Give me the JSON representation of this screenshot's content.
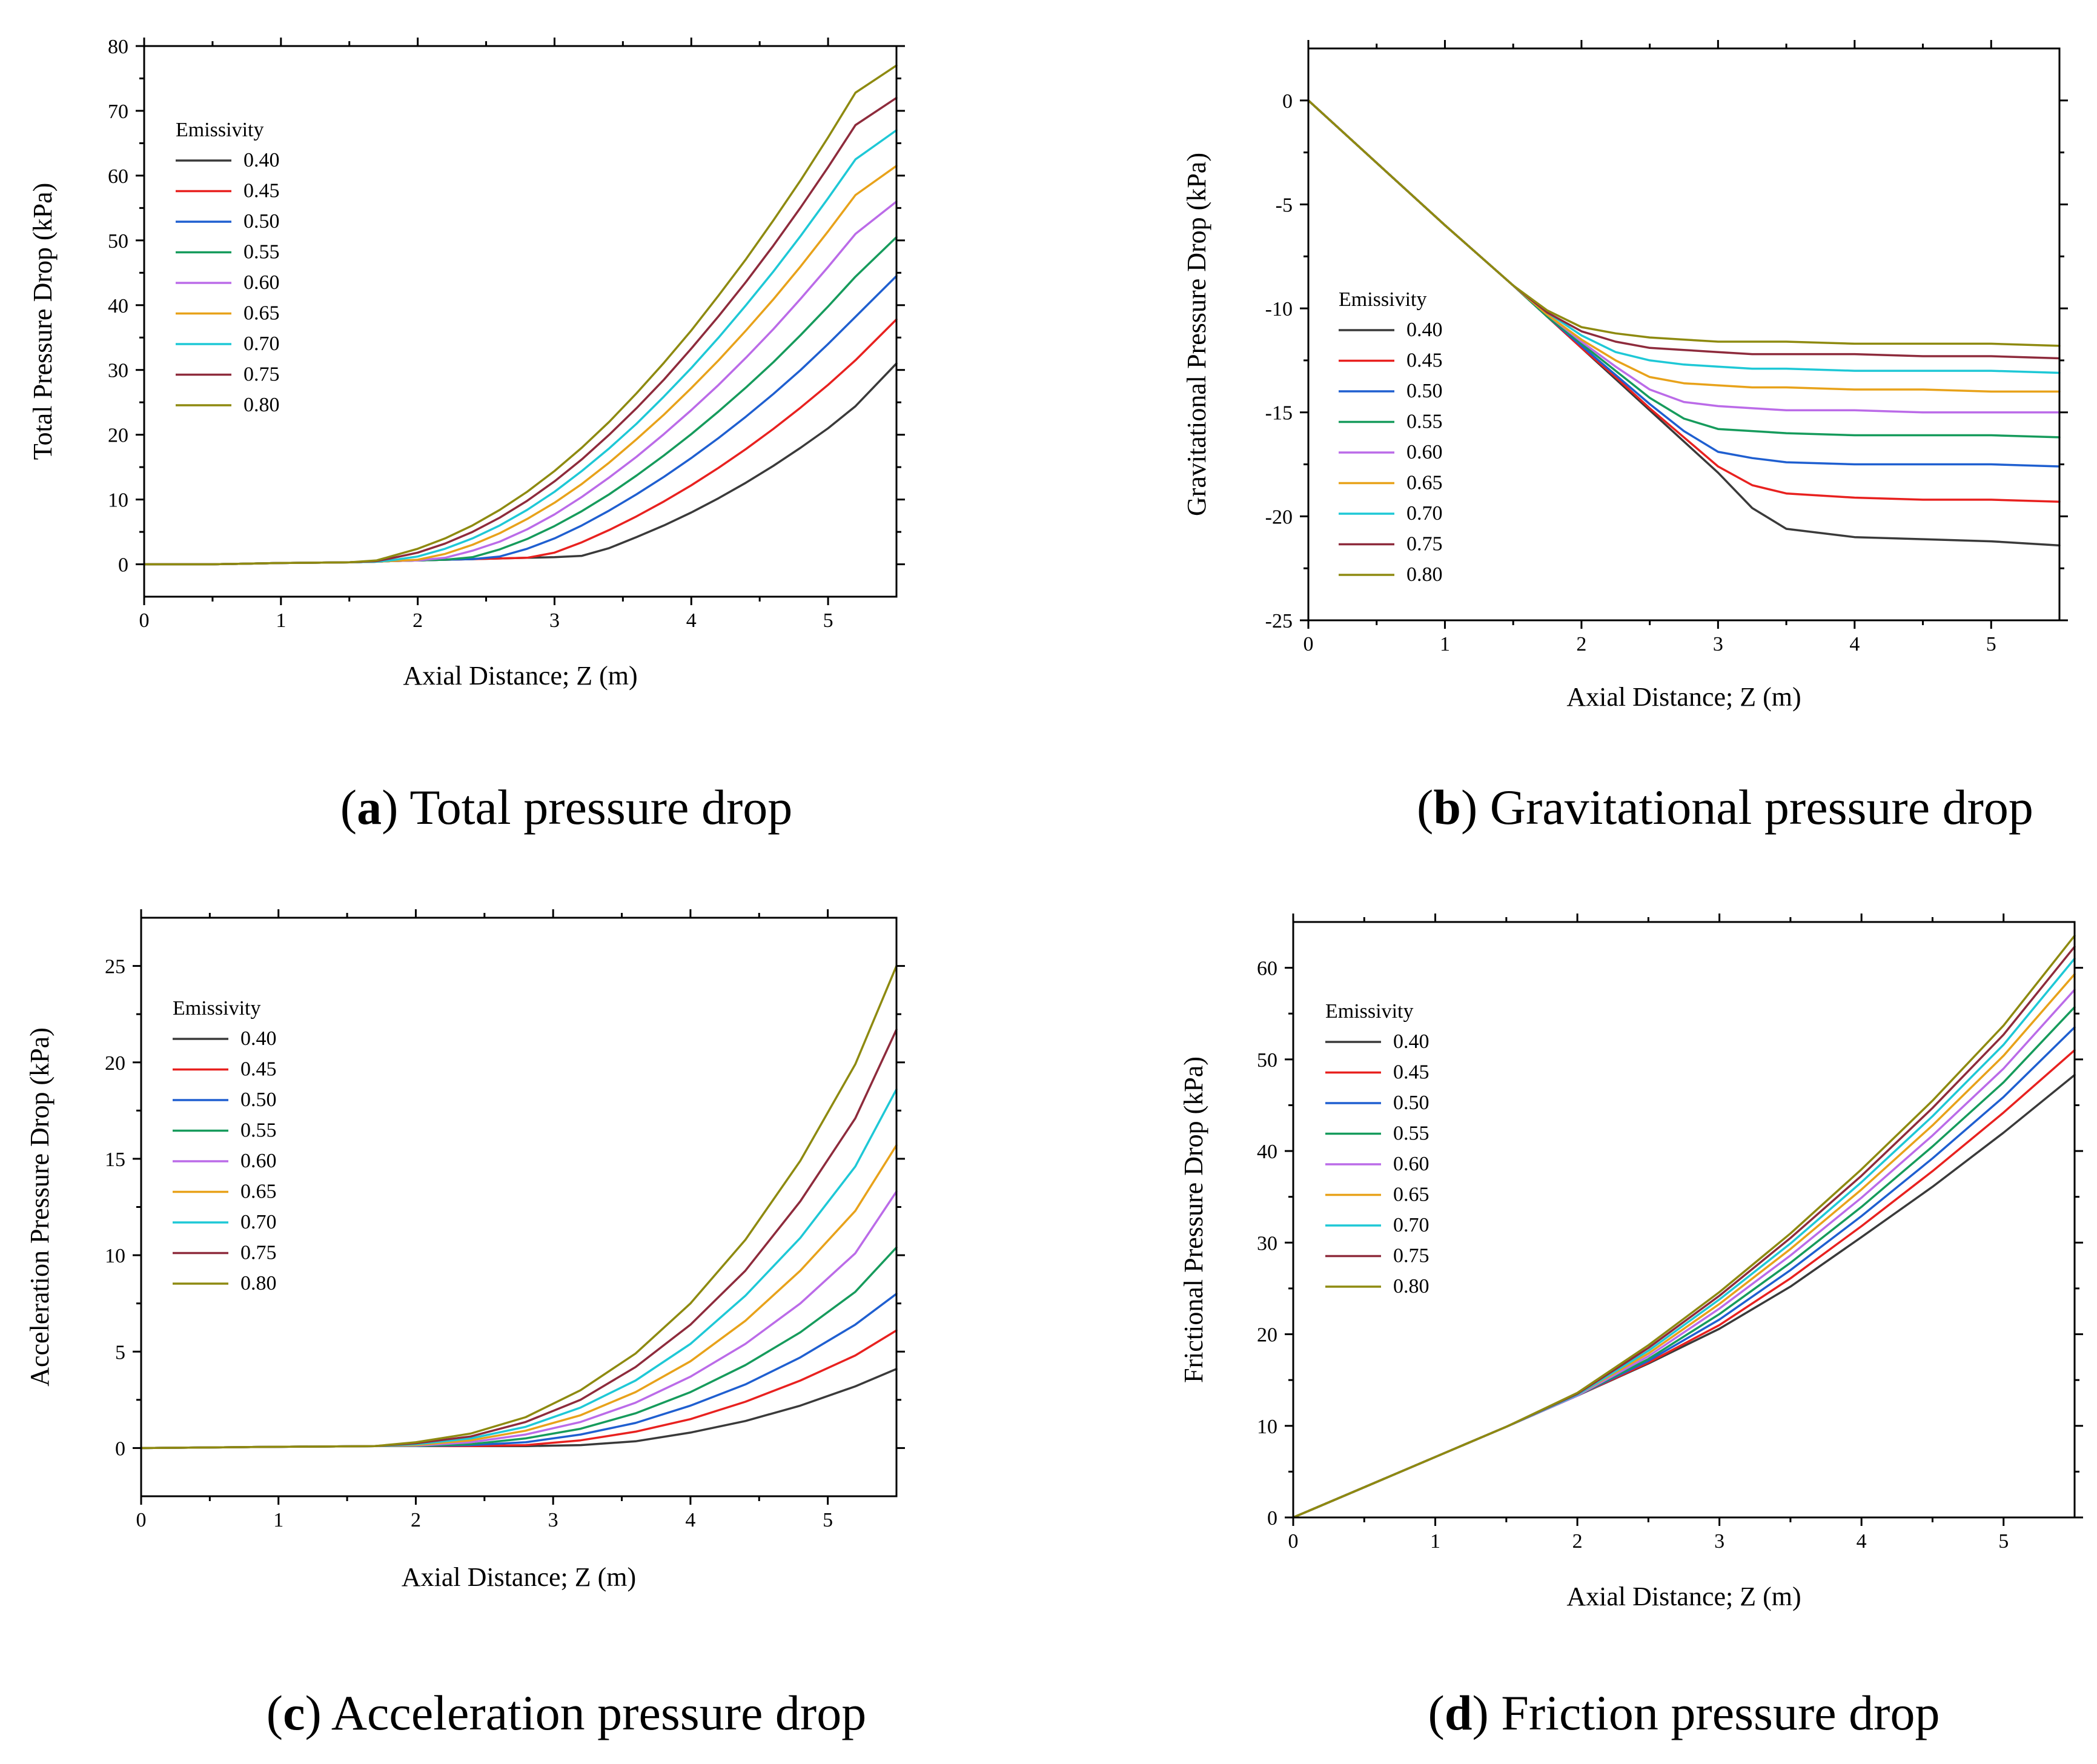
{
  "figure": {
    "series_names": [
      "0.40",
      "0.45",
      "0.50",
      "0.55",
      "0.60",
      "0.65",
      "0.70",
      "0.75",
      "0.80"
    ],
    "series_colors": [
      "#3a3a3a",
      "#e8211f",
      "#1f5fd0",
      "#169b5c",
      "#bb6be8",
      "#e8a21a",
      "#1ec8d6",
      "#8e2b3c",
      "#8e8a10"
    ]
  },
  "chart_data": [
    {
      "id": "a",
      "type": "line",
      "caption_letter": "a",
      "caption_text": "Total pressure drop",
      "xlabel": "Axial Distance; Z (m)",
      "ylabel": "Total Pressure Drop (kPa)",
      "xlim": [
        0,
        5.5
      ],
      "ylim": [
        -5,
        80
      ],
      "xticks": [
        0,
        1,
        2,
        3,
        4,
        5
      ],
      "yticks": [
        0,
        10,
        20,
        30,
        40,
        50,
        60,
        70,
        80
      ],
      "legend_title": "Emissivity",
      "legend_position": "top-left",
      "x": [
        0,
        0.5,
        1,
        1.5,
        1.7,
        1.8,
        2.0,
        2.2,
        2.4,
        2.6,
        2.8,
        3.0,
        3.2,
        3.4,
        3.6,
        3.8,
        4.0,
        4.2,
        4.4,
        4.6,
        4.8,
        5.0,
        5.2,
        5.5
      ],
      "series": [
        {
          "name": "0.40",
          "values": [
            0,
            0,
            0.2,
            0.3,
            0.4,
            0.5,
            0.6,
            0.7,
            0.8,
            0.9,
            1.0,
            1.1,
            1.3,
            2.5,
            4.2,
            6.0,
            8.0,
            10.2,
            12.6,
            15.2,
            18.0,
            21.0,
            24.4,
            31.0
          ]
        },
        {
          "name": "0.45",
          "values": [
            0,
            0,
            0.2,
            0.3,
            0.4,
            0.5,
            0.6,
            0.7,
            0.8,
            0.9,
            1.0,
            1.8,
            3.4,
            5.3,
            7.4,
            9.7,
            12.2,
            14.9,
            17.8,
            20.9,
            24.2,
            27.7,
            31.5,
            37.8
          ]
        },
        {
          "name": "0.50",
          "values": [
            0,
            0,
            0.2,
            0.3,
            0.4,
            0.5,
            0.6,
            0.7,
            0.8,
            1.2,
            2.4,
            4.0,
            6.0,
            8.3,
            10.8,
            13.5,
            16.4,
            19.5,
            22.8,
            26.3,
            30.0,
            34.0,
            38.2,
            44.5
          ]
        },
        {
          "name": "0.55",
          "values": [
            0,
            0,
            0.2,
            0.3,
            0.4,
            0.5,
            0.6,
            0.7,
            1.1,
            2.3,
            3.9,
            5.9,
            8.2,
            10.8,
            13.7,
            16.8,
            20.1,
            23.6,
            27.3,
            31.2,
            35.4,
            39.8,
            44.4,
            50.5
          ]
        },
        {
          "name": "0.60",
          "values": [
            0,
            0,
            0.2,
            0.3,
            0.4,
            0.5,
            0.6,
            1.0,
            2.1,
            3.5,
            5.4,
            7.7,
            10.4,
            13.4,
            16.6,
            20.1,
            23.8,
            27.7,
            31.9,
            36.3,
            41.0,
            45.9,
            51.0,
            56.0
          ]
        },
        {
          "name": "0.65",
          "values": [
            0,
            0,
            0.2,
            0.3,
            0.4,
            0.5,
            0.7,
            1.6,
            3.0,
            4.8,
            7.0,
            9.5,
            12.4,
            15.7,
            19.3,
            23.1,
            27.2,
            31.5,
            36.1,
            40.9,
            46.0,
            51.4,
            57.0,
            61.5
          ]
        },
        {
          "name": "0.70",
          "values": [
            0,
            0,
            0.2,
            0.3,
            0.4,
            0.6,
            1.2,
            2.4,
            4.0,
            6.0,
            8.4,
            11.2,
            14.4,
            17.9,
            21.7,
            25.9,
            30.3,
            35.0,
            40.0,
            45.2,
            50.7,
            56.5,
            62.5,
            67.0
          ]
        },
        {
          "name": "0.75",
          "values": [
            0,
            0,
            0.2,
            0.3,
            0.5,
            0.9,
            1.8,
            3.2,
            5.0,
            7.2,
            9.8,
            12.8,
            16.2,
            20.0,
            24.1,
            28.5,
            33.3,
            38.3,
            43.6,
            49.2,
            55.1,
            61.3,
            67.8,
            72.0
          ]
        },
        {
          "name": "0.80",
          "values": [
            0,
            0,
            0.2,
            0.3,
            0.6,
            1.2,
            2.4,
            4.0,
            6.0,
            8.4,
            11.2,
            14.4,
            18.0,
            22.0,
            26.4,
            31.1,
            36.1,
            41.5,
            47.1,
            53.1,
            59.3,
            65.9,
            72.8,
            77.0
          ]
        }
      ]
    },
    {
      "id": "b",
      "type": "line",
      "caption_letter": "b",
      "caption_text": "Gravitational pressure drop",
      "xlabel": "Axial Distance; Z (m)",
      "ylabel": "Gravitational Pressure Drop (kPa)",
      "xlim": [
        0,
        5.5
      ],
      "ylim": [
        -25,
        2.5
      ],
      "xticks": [
        0,
        1,
        2,
        3,
        4,
        5
      ],
      "yticks": [
        0,
        -5,
        -10,
        -15,
        -20,
        -25
      ],
      "legend_title": "Emissivity",
      "legend_position": "center-left",
      "x": [
        0,
        0.5,
        1.0,
        1.5,
        1.75,
        2.0,
        2.25,
        2.5,
        2.75,
        3.0,
        3.25,
        3.5,
        4.0,
        4.5,
        5.0,
        5.5
      ],
      "series": [
        {
          "name": "0.40",
          "values": [
            0,
            -3.0,
            -6.0,
            -8.9,
            -10.4,
            -11.9,
            -13.4,
            -14.9,
            -16.4,
            -17.9,
            -19.6,
            -20.6,
            -21.0,
            -21.1,
            -21.2,
            -21.4
          ]
        },
        {
          "name": "0.45",
          "values": [
            0,
            -3.0,
            -6.0,
            -8.9,
            -10.4,
            -11.9,
            -13.3,
            -14.8,
            -16.2,
            -17.6,
            -18.5,
            -18.9,
            -19.1,
            -19.2,
            -19.2,
            -19.3
          ]
        },
        {
          "name": "0.50",
          "values": [
            0,
            -3.0,
            -6.0,
            -8.9,
            -10.4,
            -11.8,
            -13.2,
            -14.6,
            -15.9,
            -16.9,
            -17.2,
            -17.4,
            -17.5,
            -17.5,
            -17.5,
            -17.6
          ]
        },
        {
          "name": "0.55",
          "values": [
            0,
            -3.0,
            -6.0,
            -8.9,
            -10.4,
            -11.7,
            -13.0,
            -14.3,
            -15.3,
            -15.8,
            -15.9,
            -16.0,
            -16.1,
            -16.1,
            -16.1,
            -16.2
          ]
        },
        {
          "name": "0.60",
          "values": [
            0,
            -3.0,
            -6.0,
            -8.9,
            -10.3,
            -11.6,
            -12.8,
            -13.9,
            -14.5,
            -14.7,
            -14.8,
            -14.9,
            -14.9,
            -15.0,
            -15.0,
            -15.0
          ]
        },
        {
          "name": "0.65",
          "values": [
            0,
            -3.0,
            -6.0,
            -8.9,
            -10.3,
            -11.5,
            -12.5,
            -13.3,
            -13.6,
            -13.7,
            -13.8,
            -13.8,
            -13.9,
            -13.9,
            -14.0,
            -14.0
          ]
        },
        {
          "name": "0.70",
          "values": [
            0,
            -3.0,
            -6.0,
            -8.9,
            -10.2,
            -11.3,
            -12.1,
            -12.5,
            -12.7,
            -12.8,
            -12.9,
            -12.9,
            -13.0,
            -13.0,
            -13.0,
            -13.1
          ]
        },
        {
          "name": "0.75",
          "values": [
            0,
            -3.0,
            -6.0,
            -8.9,
            -10.2,
            -11.1,
            -11.6,
            -11.9,
            -12.0,
            -12.1,
            -12.2,
            -12.2,
            -12.2,
            -12.3,
            -12.3,
            -12.4
          ]
        },
        {
          "name": "0.80",
          "values": [
            0,
            -3.0,
            -6.0,
            -8.9,
            -10.1,
            -10.9,
            -11.2,
            -11.4,
            -11.5,
            -11.6,
            -11.6,
            -11.6,
            -11.7,
            -11.7,
            -11.7,
            -11.8
          ]
        }
      ]
    },
    {
      "id": "c",
      "type": "line",
      "caption_letter": "c",
      "caption_text": "Acceleration pressure drop",
      "xlabel": "Axial Distance; Z (m)",
      "ylabel": "Acceleration Pressure Drop (kPa)",
      "xlim": [
        0,
        5.5
      ],
      "ylim": [
        -2.5,
        27.5
      ],
      "xticks": [
        0,
        1,
        2,
        3,
        4,
        5
      ],
      "yticks": [
        0,
        5,
        10,
        15,
        20,
        25
      ],
      "legend_title": "Emissivity",
      "legend_position": "top-left",
      "x": [
        0,
        0.8,
        1.7,
        2.0,
        2.4,
        2.8,
        3.2,
        3.6,
        4.0,
        4.4,
        4.8,
        5.2,
        5.5
      ],
      "series": [
        {
          "name": "0.40",
          "values": [
            0,
            0.05,
            0.1,
            0.1,
            0.1,
            0.1,
            0.15,
            0.35,
            0.8,
            1.4,
            2.2,
            3.2,
            4.1
          ]
        },
        {
          "name": "0.45",
          "values": [
            0,
            0.05,
            0.1,
            0.1,
            0.1,
            0.15,
            0.4,
            0.85,
            1.5,
            2.4,
            3.5,
            4.8,
            6.1
          ]
        },
        {
          "name": "0.50",
          "values": [
            0,
            0.05,
            0.1,
            0.1,
            0.15,
            0.3,
            0.7,
            1.3,
            2.2,
            3.3,
            4.7,
            6.4,
            8.0
          ]
        },
        {
          "name": "0.55",
          "values": [
            0,
            0.05,
            0.1,
            0.1,
            0.2,
            0.5,
            1.0,
            1.8,
            2.9,
            4.3,
            6.0,
            8.1,
            10.4
          ]
        },
        {
          "name": "0.60",
          "values": [
            0,
            0.05,
            0.1,
            0.12,
            0.3,
            0.7,
            1.35,
            2.35,
            3.7,
            5.4,
            7.5,
            10.1,
            13.3
          ]
        },
        {
          "name": "0.65",
          "values": [
            0,
            0.05,
            0.1,
            0.15,
            0.4,
            0.9,
            1.7,
            2.9,
            4.5,
            6.6,
            9.2,
            12.3,
            15.7
          ]
        },
        {
          "name": "0.70",
          "values": [
            0,
            0.05,
            0.1,
            0.2,
            0.5,
            1.1,
            2.1,
            3.5,
            5.4,
            7.9,
            10.9,
            14.6,
            18.6
          ]
        },
        {
          "name": "0.75",
          "values": [
            0,
            0.05,
            0.1,
            0.25,
            0.6,
            1.35,
            2.5,
            4.2,
            6.4,
            9.2,
            12.8,
            17.1,
            21.7
          ]
        },
        {
          "name": "0.80",
          "values": [
            0,
            0.05,
            0.1,
            0.3,
            0.75,
            1.6,
            3.0,
            4.9,
            7.5,
            10.8,
            14.9,
            19.9,
            25.0
          ]
        }
      ]
    },
    {
      "id": "d",
      "type": "line",
      "caption_letter": "d",
      "caption_text": "Friction pressure drop",
      "xlabel": "Axial Distance; Z (m)",
      "ylabel": "Frictional Pressure Drop (kPa)",
      "xlim": [
        0,
        5.5
      ],
      "ylim": [
        0,
        65
      ],
      "xticks": [
        0,
        1,
        2,
        3,
        4,
        5
      ],
      "yticks": [
        0,
        10,
        20,
        30,
        40,
        50,
        60
      ],
      "legend_title": "Emissivity",
      "legend_position": "top-left",
      "x": [
        0,
        0.5,
        1.0,
        1.5,
        2.0,
        2.5,
        3.0,
        3.5,
        4.0,
        4.5,
        5.0,
        5.5
      ],
      "series": [
        {
          "name": "0.40",
          "values": [
            0,
            3.3,
            6.6,
            9.9,
            13.3,
            16.8,
            20.6,
            25.2,
            30.6,
            36.1,
            42.0,
            48.3
          ]
        },
        {
          "name": "0.45",
          "values": [
            0,
            3.3,
            6.6,
            9.9,
            13.3,
            16.9,
            21.0,
            26.1,
            31.8,
            37.8,
            44.2,
            51.0
          ]
        },
        {
          "name": "0.50",
          "values": [
            0,
            3.3,
            6.6,
            9.9,
            13.3,
            17.1,
            21.6,
            27.0,
            32.9,
            39.2,
            45.9,
            53.5
          ]
        },
        {
          "name": "0.55",
          "values": [
            0,
            3.3,
            6.6,
            9.9,
            13.3,
            17.3,
            22.2,
            27.8,
            33.9,
            40.5,
            47.5,
            55.7
          ]
        },
        {
          "name": "0.60",
          "values": [
            0,
            3.3,
            6.6,
            9.9,
            13.3,
            17.6,
            22.8,
            28.6,
            34.9,
            41.7,
            49.0,
            57.6
          ]
        },
        {
          "name": "0.65",
          "values": [
            0,
            3.3,
            6.6,
            9.9,
            13.4,
            17.9,
            23.3,
            29.3,
            35.8,
            42.8,
            50.4,
            59.3
          ]
        },
        {
          "name": "0.70",
          "values": [
            0,
            3.3,
            6.6,
            9.9,
            13.4,
            18.2,
            23.8,
            29.9,
            36.6,
            43.8,
            51.6,
            61.0
          ]
        },
        {
          "name": "0.75",
          "values": [
            0,
            3.3,
            6.6,
            9.9,
            13.5,
            18.5,
            24.2,
            30.5,
            37.3,
            44.7,
            52.7,
            62.3
          ]
        },
        {
          "name": "0.80",
          "values": [
            0,
            3.3,
            6.6,
            9.9,
            13.6,
            18.8,
            24.6,
            31.0,
            38.0,
            45.5,
            53.7,
            63.5
          ]
        }
      ]
    }
  ]
}
